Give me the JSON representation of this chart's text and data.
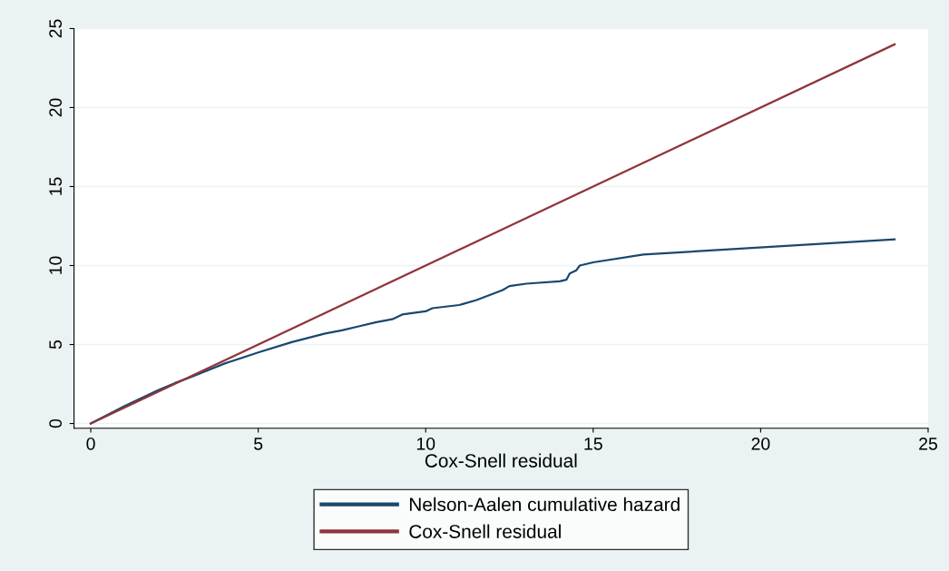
{
  "chart_data": {
    "type": "line",
    "xlabel": "Cox-Snell residual",
    "xlim": [
      -0.5,
      25
    ],
    "ylim": [
      -0.3,
      25
    ],
    "xticks": [
      0,
      5,
      10,
      15,
      20,
      25
    ],
    "yticks": [
      0,
      5,
      10,
      15,
      20,
      25
    ],
    "grid": "y",
    "legend": "bottom",
    "marker": "none",
    "line_style": "solid",
    "series": [
      {
        "name": "Nelson-Aalen cumulative hazard",
        "color": "#1a476f",
        "x": [
          0,
          1,
          2,
          2.5,
          3,
          4,
          5,
          6,
          7,
          7.5,
          8,
          8.5,
          9,
          9.3,
          10,
          10.2,
          11,
          11.5,
          12,
          12.3,
          12.5,
          13,
          14,
          14.2,
          14.3,
          14.5,
          14.6,
          15,
          16.5,
          24
        ],
        "values": [
          0,
          1.1,
          2.1,
          2.55,
          2.95,
          3.8,
          4.5,
          5.15,
          5.7,
          5.9,
          6.15,
          6.4,
          6.6,
          6.9,
          7.1,
          7.3,
          7.5,
          7.8,
          8.2,
          8.45,
          8.7,
          8.85,
          9.0,
          9.1,
          9.5,
          9.7,
          10.0,
          10.2,
          10.7,
          11.65
        ]
      },
      {
        "name": "Cox-Snell residual",
        "color": "#90353b",
        "x": [
          0,
          24
        ],
        "values": [
          0,
          24
        ]
      }
    ]
  }
}
